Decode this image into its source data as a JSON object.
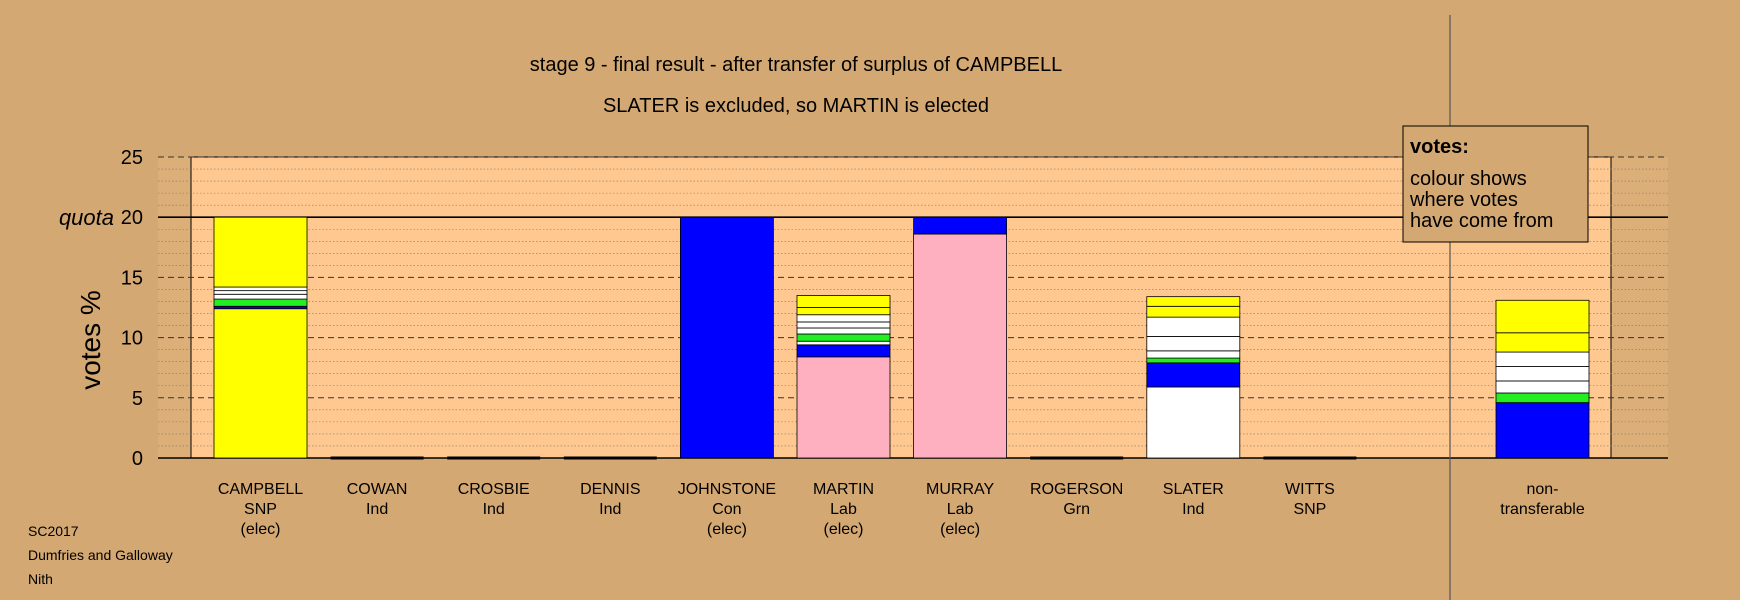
{
  "caption": [
    "SC2017",
    "Dumfries and Galloway",
    "Nith"
  ],
  "chart_data": {
    "type": "bar",
    "stacked": true,
    "title": "stage 9 - final result - after transfer of surplus of CAMPBELL",
    "subtitle": "SLATER is excluded, so MARTIN is elected",
    "ylabel": "votes %",
    "ylim": [
      0,
      25
    ],
    "yticks": [
      0,
      5,
      10,
      15,
      20,
      25
    ],
    "quota": 20,
    "quota_label": "quota",
    "grid": true,
    "legend": {
      "placement": "top-right",
      "heading": "votes:",
      "lines": [
        "colour shows",
        "where votes",
        "have come from"
      ]
    },
    "colors": {
      "yellow": "#ffff00",
      "blue": "#0000ff",
      "pink": "#ffb0c0",
      "white": "#ffffff",
      "green": "#22ee22",
      "background": "#d4a872",
      "plot": "#ffc890"
    },
    "candidates": [
      {
        "label": [
          "CAMPBELL",
          "SNP",
          "(elec)"
        ],
        "segments": [
          {
            "value": 12.4,
            "color": "yellow"
          },
          {
            "value": 0.2,
            "color": "blue"
          },
          {
            "value": 0.6,
            "color": "green"
          },
          {
            "value": 0.4,
            "color": "white"
          },
          {
            "value": 0.3,
            "color": "white"
          },
          {
            "value": 0.3,
            "color": "white"
          },
          {
            "value": 5.8,
            "color": "yellow"
          }
        ]
      },
      {
        "label": [
          "COWAN",
          "Ind"
        ],
        "segments": []
      },
      {
        "label": [
          "CROSBIE",
          "Ind"
        ],
        "segments": []
      },
      {
        "label": [
          "DENNIS",
          "Ind"
        ],
        "segments": []
      },
      {
        "label": [
          "JOHNSTONE",
          "Con",
          "(elec)"
        ],
        "segments": [
          {
            "value": 20.0,
            "color": "blue"
          }
        ]
      },
      {
        "label": [
          "MARTIN",
          "Lab",
          "(elec)"
        ],
        "segments": [
          {
            "value": 8.4,
            "color": "pink"
          },
          {
            "value": 1.0,
            "color": "blue"
          },
          {
            "value": 0.3,
            "color": "white"
          },
          {
            "value": 0.6,
            "color": "green"
          },
          {
            "value": 0.5,
            "color": "white"
          },
          {
            "value": 0.5,
            "color": "white"
          },
          {
            "value": 0.6,
            "color": "white"
          },
          {
            "value": 0.6,
            "color": "yellow"
          },
          {
            "value": 1.0,
            "color": "yellow"
          }
        ]
      },
      {
        "label": [
          "MURRAY",
          "Lab",
          "(elec)"
        ],
        "segments": [
          {
            "value": 18.6,
            "color": "pink"
          },
          {
            "value": 1.4,
            "color": "blue"
          }
        ]
      },
      {
        "label": [
          "ROGERSON",
          "Grn"
        ],
        "segments": []
      },
      {
        "label": [
          "SLATER",
          "Ind"
        ],
        "segments": [
          {
            "value": 5.9,
            "color": "white"
          },
          {
            "value": 2.0,
            "color": "blue"
          },
          {
            "value": 0.4,
            "color": "green"
          },
          {
            "value": 0.6,
            "color": "white"
          },
          {
            "value": 1.2,
            "color": "white"
          },
          {
            "value": 1.6,
            "color": "white"
          },
          {
            "value": 0.9,
            "color": "yellow"
          },
          {
            "value": 0.8,
            "color": "yellow"
          }
        ]
      },
      {
        "label": [
          "WITTS",
          "SNP"
        ],
        "segments": []
      }
    ],
    "nontransferable": {
      "label": [
        "non-",
        "transferable"
      ],
      "segments": [
        {
          "value": 4.6,
          "color": "blue"
        },
        {
          "value": 0.8,
          "color": "green"
        },
        {
          "value": 1.0,
          "color": "white"
        },
        {
          "value": 1.2,
          "color": "white"
        },
        {
          "value": 1.2,
          "color": "white"
        },
        {
          "value": 1.6,
          "color": "yellow"
        },
        {
          "value": 2.7,
          "color": "yellow"
        }
      ]
    }
  }
}
